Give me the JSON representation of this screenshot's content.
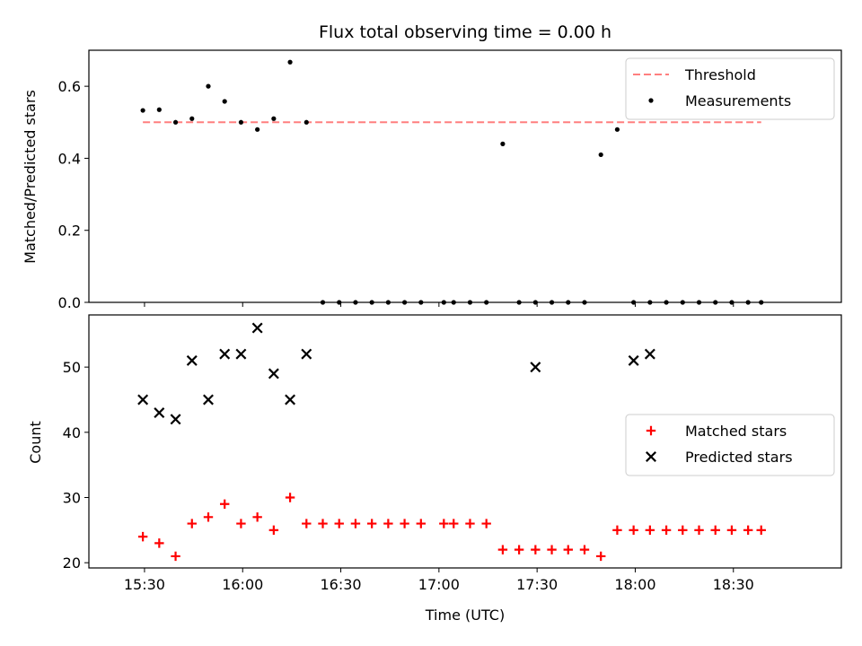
{
  "chart_data": {
    "type": "scatter",
    "title": "Flux total observing time = 0.00 h",
    "xlabel": "Time (UTC)",
    "x_ticks": [
      "15:30",
      "16:00",
      "16:30",
      "17:00",
      "17:30",
      "18:00",
      "18:30"
    ],
    "x_range_minutes": [
      913,
      1143
    ],
    "panels": [
      {
        "id": "ratio",
        "ylabel": "Matched/Predicted stars",
        "ylim": [
          0,
          0.7
        ],
        "y_ticks": [
          "0.0",
          "0.2",
          "0.4",
          "0.6"
        ],
        "legend_position": "top-right",
        "series": [
          {
            "name": "Threshold",
            "style": "dashed-line",
            "color": "#ff7f7f",
            "x": [
              929.5,
              1118.5
            ],
            "y": [
              0.5,
              0.5
            ]
          },
          {
            "name": "Measurements",
            "style": "dot",
            "color": "#000000",
            "x": [
              929.5,
              934.5,
              939.5,
              944.5,
              949.5,
              954.5,
              959.5,
              964.5,
              969.5,
              974.5,
              979.5,
              984.5,
              989.5,
              994.5,
              999.5,
              1004.5,
              1009.5,
              1014.5,
              1021.5,
              1024.5,
              1029.5,
              1034.5,
              1039.5,
              1044.5,
              1049.5,
              1054.5,
              1059.5,
              1064.5,
              1069.5,
              1074.5,
              1079.5,
              1084.5,
              1089.5,
              1094.5,
              1099.5,
              1104.5,
              1109.5,
              1114.5,
              1118.5
            ],
            "y": [
              0.533,
              0.535,
              0.5,
              0.51,
              0.6,
              0.558,
              0.5,
              0.48,
              0.51,
              0.667,
              0.5,
              0,
              0,
              0,
              0,
              0,
              0,
              0,
              0,
              0,
              0,
              0,
              0.44,
              0,
              0,
              0,
              0,
              0,
              0.41,
              0.48,
              0,
              0,
              0,
              0,
              0,
              0,
              0,
              0,
              0
            ]
          }
        ]
      },
      {
        "id": "count",
        "ylabel": "Count",
        "ylim": [
          19.2,
          58
        ],
        "y_ticks": [
          "20",
          "30",
          "40",
          "50"
        ],
        "legend_position": "center-right",
        "series": [
          {
            "name": "Matched stars",
            "style": "plus",
            "color": "#ff0000",
            "x": [
              929.5,
              934.5,
              939.5,
              944.5,
              949.5,
              954.5,
              959.5,
              964.5,
              969.5,
              974.5,
              979.5,
              984.5,
              989.5,
              994.5,
              999.5,
              1004.5,
              1009.5,
              1014.5,
              1021.5,
              1024.5,
              1029.5,
              1034.5,
              1039.5,
              1044.5,
              1049.5,
              1054.5,
              1059.5,
              1064.5,
              1069.5,
              1074.5,
              1079.5,
              1084.5,
              1089.5,
              1094.5,
              1099.5,
              1104.5,
              1109.5,
              1114.5,
              1118.5
            ],
            "y": [
              24,
              23,
              21,
              26,
              27,
              29,
              26,
              27,
              25,
              30,
              26,
              26,
              26,
              26,
              26,
              26,
              26,
              26,
              26,
              26,
              26,
              26,
              22,
              22,
              22,
              22,
              22,
              22,
              21,
              25,
              25,
              25,
              25,
              25,
              25,
              25,
              25,
              25,
              25
            ]
          },
          {
            "name": "Predicted stars",
            "style": "x",
            "color": "#000000",
            "x": [
              929.5,
              934.5,
              939.5,
              944.5,
              949.5,
              954.5,
              959.5,
              964.5,
              969.5,
              974.5,
              979.5,
              1049.5,
              1079.5,
              1084.5
            ],
            "y": [
              45,
              43,
              42,
              51,
              45,
              52,
              52,
              56,
              49,
              45,
              52,
              50,
              51,
              52
            ]
          }
        ]
      }
    ]
  }
}
